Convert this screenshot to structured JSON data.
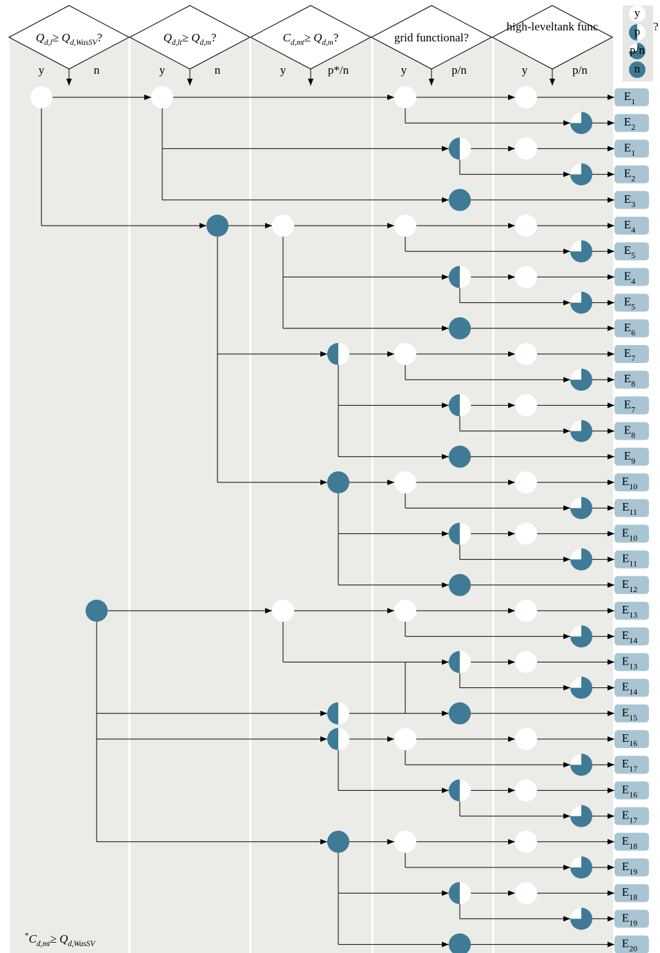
{
  "headers": [
    {
      "question": [
        {
          "text": "Q",
          "italic": true
        },
        {
          "text": "d,l",
          "sub": true,
          "italic": true
        },
        {
          "text": "≥ Q",
          "italic": true
        },
        {
          "text": "d,WasSV",
          "sub": true,
          "italic": true
        },
        {
          "text": "?"
        }
      ],
      "branches": [
        "y",
        "n"
      ]
    },
    {
      "question": [
        {
          "text": "Q",
          "italic": true
        },
        {
          "text": "d,lt",
          "sub": true,
          "italic": true
        },
        {
          "text": "≥ Q",
          "italic": true
        },
        {
          "text": "d,m",
          "sub": true,
          "italic": true
        },
        {
          "text": "?"
        }
      ],
      "branches": [
        "y",
        "n"
      ]
    },
    {
      "question": [
        {
          "text": "C",
          "italic": true
        },
        {
          "text": "d,mt",
          "sub": true,
          "italic": true
        },
        {
          "text": "≥ Q",
          "italic": true
        },
        {
          "text": "d,m",
          "sub": true,
          "italic": true
        },
        {
          "text": "?"
        }
      ],
      "branches": [
        "y",
        "p*/n"
      ]
    },
    {
      "question": [
        {
          "text": "grid functional?"
        }
      ],
      "branches": [
        "y",
        "p/n"
      ]
    },
    {
      "question": [
        {
          "text": "high-leveltank func"
        }
      ],
      "branches": [
        "y",
        "p/n"
      ]
    }
  ],
  "header_overflow": "?",
  "legend": [
    "y",
    "p",
    "p/n",
    "n"
  ],
  "end_states": [
    {
      "label": "E",
      "sub": "1"
    },
    {
      "label": "E",
      "sub": "2"
    },
    {
      "label": "E",
      "sub": "1"
    },
    {
      "label": "E",
      "sub": "2"
    },
    {
      "label": "E",
      "sub": "3"
    },
    {
      "label": "E",
      "sub": "4"
    },
    {
      "label": "E",
      "sub": "5"
    },
    {
      "label": "E",
      "sub": "4"
    },
    {
      "label": "E",
      "sub": "5"
    },
    {
      "label": "E",
      "sub": "6"
    },
    {
      "label": "E",
      "sub": "7"
    },
    {
      "label": "E",
      "sub": "8"
    },
    {
      "label": "E",
      "sub": "7"
    },
    {
      "label": "E",
      "sub": "8"
    },
    {
      "label": "E",
      "sub": "9"
    },
    {
      "label": "E",
      "sub": "10"
    },
    {
      "label": "E",
      "sub": "11"
    },
    {
      "label": "E",
      "sub": "10"
    },
    {
      "label": "E",
      "sub": "11"
    },
    {
      "label": "E",
      "sub": "12"
    },
    {
      "label": "E",
      "sub": "13"
    },
    {
      "label": "E",
      "sub": "14"
    },
    {
      "label": "E",
      "sub": "13"
    },
    {
      "label": "E",
      "sub": "14"
    },
    {
      "label": "E",
      "sub": "15"
    },
    {
      "label": "E",
      "sub": "16"
    },
    {
      "label": "E",
      "sub": "17"
    },
    {
      "label": "E",
      "sub": "16"
    },
    {
      "label": "E",
      "sub": "17"
    },
    {
      "label": "E",
      "sub": "18"
    },
    {
      "label": "E",
      "sub": "19"
    },
    {
      "label": "E",
      "sub": "18"
    },
    {
      "label": "E",
      "sub": "19"
    },
    {
      "label": "E",
      "sub": "20"
    }
  ],
  "footnote": [
    {
      "text": "*",
      "sup": true
    },
    {
      "text": "C",
      "italic": true
    },
    {
      "text": "d,mt",
      "sub": true,
      "italic": true
    },
    {
      "text": "≥ Q",
      "italic": true
    },
    {
      "text": "d,WasSV",
      "sub": true,
      "italic": true
    }
  ]
}
